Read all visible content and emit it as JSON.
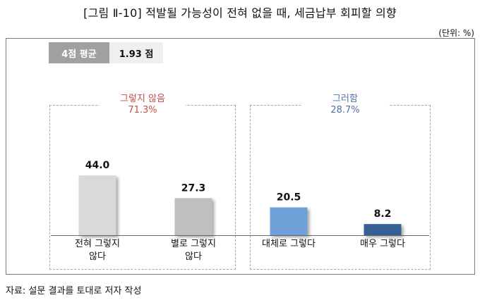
{
  "title": "[그림 Ⅱ-10] 적발될 가능성이 전혀 없을 때, 세금납부 회피할 의향",
  "unit": "(단위: %)",
  "average": {
    "label": "4점 평균",
    "value": "1.93 점"
  },
  "groups": [
    {
      "name": "그렇지 않음",
      "total": "71.3%",
      "color": "#c0504d"
    },
    {
      "name": "그러함",
      "total": "28.7%",
      "color": "#4f6fae"
    }
  ],
  "source": "자료: 설문 결과를 토대로 저자 작성",
  "chart_data": {
    "type": "bar",
    "categories": [
      "전혀 그렇지\n않다",
      "별로 그렇지\n않다",
      "대체로 그렇다",
      "매우 그렇다"
    ],
    "values": [
      44.0,
      27.3,
      20.5,
      8.2
    ],
    "value_labels": [
      "44.0",
      "27.3",
      "20.5",
      "8.2"
    ],
    "colors": [
      "#d9d9d9",
      "#bfbfbf",
      "#6fa0d8",
      "#355e95"
    ],
    "title": "적발될 가능성이 전혀 없을 때, 세금납부 회피할 의향",
    "ylabel": "",
    "ylim": [
      0,
      50
    ]
  }
}
